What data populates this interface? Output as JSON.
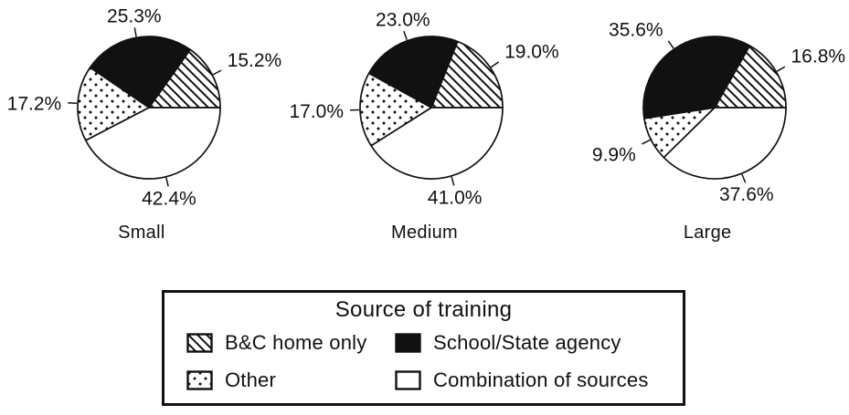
{
  "figure": {
    "background": "#ffffff",
    "ink": "#111111"
  },
  "chart_data": {
    "type": "pie",
    "title": "Source of training",
    "categories": [
      "B&C home only",
      "School/State agency",
      "Other",
      "Combination of sources"
    ],
    "patterns": [
      "diagonal-hatch",
      "solid-black",
      "dots",
      "white"
    ],
    "start_angle_deg": 0,
    "direction": "counterclockwise",
    "grid": false,
    "pies": [
      {
        "label": "Small",
        "values": [
          15.2,
          25.3,
          17.2,
          42.4
        ],
        "display_labels": [
          "15.2%",
          "25.3%",
          "17.2%",
          "42.4%"
        ]
      },
      {
        "label": "Medium",
        "values": [
          19.0,
          23.0,
          17.0,
          41.0
        ],
        "display_labels": [
          "19.0%",
          "23.0%",
          "17.0%",
          "41.0%"
        ]
      },
      {
        "label": "Large",
        "values": [
          16.8,
          35.6,
          9.9,
          37.6
        ],
        "display_labels": [
          "16.8%",
          "35.6%",
          "9.9%",
          "37.6%"
        ]
      }
    ],
    "legend": {
      "title": "Source of training",
      "position": "bottom-center",
      "items": [
        {
          "label": "B&C home only",
          "pattern": "diagonal-hatch"
        },
        {
          "label": "School/State agency",
          "pattern": "solid-black"
        },
        {
          "label": "Other",
          "pattern": "dots"
        },
        {
          "label": "Combination of sources",
          "pattern": "white"
        }
      ]
    }
  }
}
